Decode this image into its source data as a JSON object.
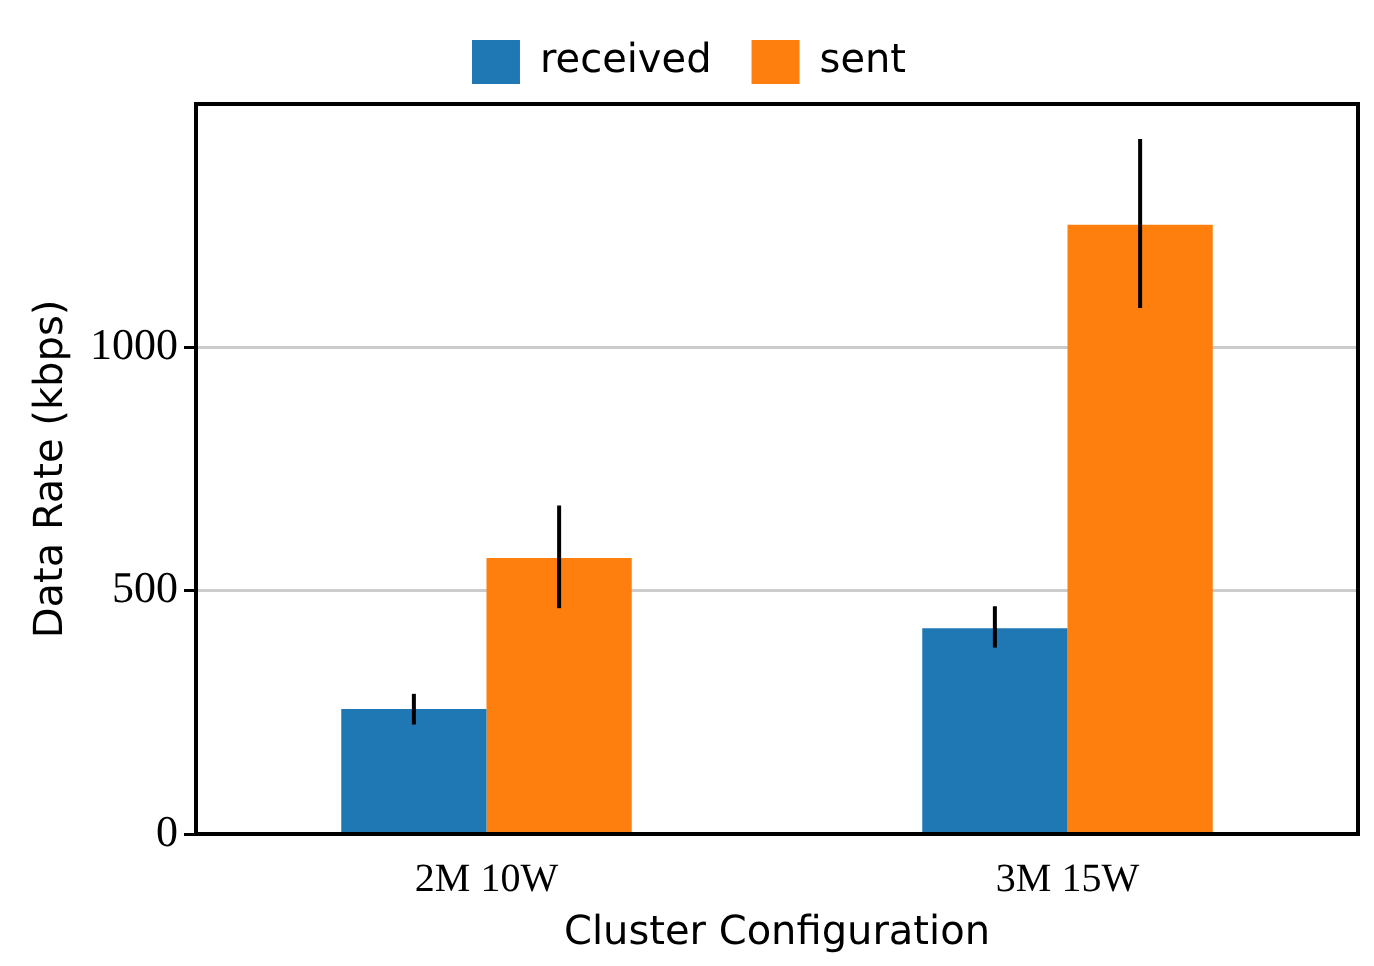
{
  "chart_data": {
    "type": "bar",
    "xlabel": "Cluster Configuration",
    "ylabel": "Data Rate (kbps)",
    "categories": [
      "2M 10W",
      "3M 15W"
    ],
    "series": [
      {
        "name": "received",
        "color": "#1f77b4",
        "values": [
          257,
          423
        ],
        "errors": [
          [
            225,
            288
          ],
          [
            383,
            468
          ]
        ]
      },
      {
        "name": "sent",
        "color": "#ff7f0e",
        "values": [
          567,
          1252
        ],
        "errors": [
          [
            464,
            675
          ],
          [
            1081,
            1428
          ]
        ]
      }
    ],
    "ylim": [
      0,
      1500
    ],
    "yticks": [
      0,
      500,
      1000
    ],
    "grid": "y",
    "legend": "top"
  }
}
